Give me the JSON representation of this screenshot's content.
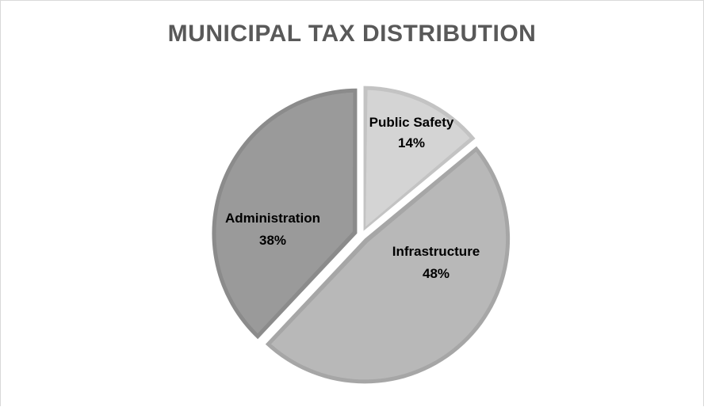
{
  "chart_data": {
    "type": "pie",
    "title": "MUNICIPAL TAX DISTRIBUTION",
    "start_angle_deg": 0,
    "direction": "clockwise",
    "slices": [
      {
        "label": "Public Safety",
        "value": 14,
        "value_label": "14%",
        "color": "#d4d4d4",
        "edge_color": "#c3c3c3"
      },
      {
        "label": "Infrastructure",
        "value": 48,
        "value_label": "48%",
        "color": "#b8b8b8",
        "edge_color": "#a6a6a6"
      },
      {
        "label": "Administration",
        "value": 38,
        "value_label": "38%",
        "color": "#9a9a9a",
        "edge_color": "#8b8b8b"
      }
    ]
  }
}
